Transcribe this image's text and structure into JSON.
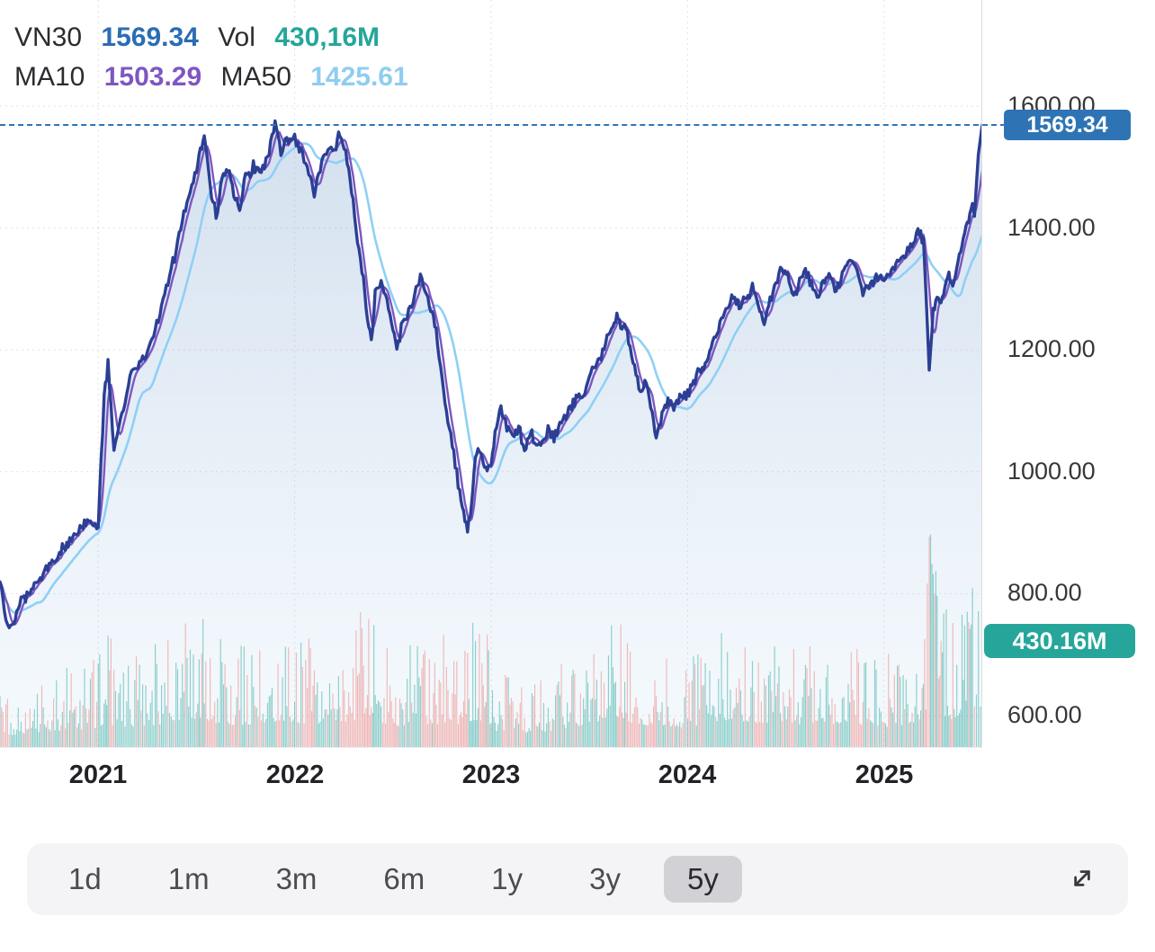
{
  "legend": {
    "symbol_label": "VN30",
    "price": "1569.34",
    "vol_label": "Vol",
    "vol_value": "430,16M",
    "ma10_label": "MA10",
    "ma10_value": "1503.29",
    "ma50_label": "MA50",
    "ma50_value": "1425.61"
  },
  "badges": {
    "price": "1569.34",
    "volume": "430.16M"
  },
  "axis": {
    "price_labels": [
      "1600.00",
      "1400.00",
      "1200.00",
      "1000.00",
      "800.00",
      "600.00"
    ],
    "year_labels": [
      "2021",
      "2022",
      "2023",
      "2024",
      "2025"
    ]
  },
  "toolbar": {
    "ranges": [
      "1d",
      "1m",
      "3m",
      "6m",
      "1y",
      "3y",
      "5y"
    ],
    "selected": "5y"
  },
  "icons": {
    "expand": "diagonal-expand-arrows"
  },
  "chart_data": {
    "type": "line",
    "symbol": "VN30",
    "current_price": 1569.34,
    "current_volume_m": 430.16,
    "ma10_current": 1503.29,
    "ma50_current": 1425.61,
    "series_names": [
      "VN30",
      "MA10",
      "MA50"
    ],
    "legend_position": "top-left",
    "grid": "dotted",
    "xlim": [
      2020.5,
      2025.5
    ],
    "ylim": [
      547,
      1774
    ],
    "x_ticks": [
      2021,
      2022,
      2023,
      2024,
      2025
    ],
    "y_ticks": [
      1600,
      1400,
      1200,
      1000,
      800,
      600
    ],
    "jitter": 9,
    "volume_scale": 0.2,
    "colors": {
      "price": "#2b3f94",
      "ma10": "#7e57c2",
      "ma50": "#8fd0f5",
      "area_top": "rgba(110,150,200,0.30)",
      "area_bottom": "rgba(190,220,240,0.16)",
      "volume_up": "rgba(38,166,154,0.50)",
      "volume_down": "rgba(235,95,90,0.42)",
      "current_line": "#2e75b6",
      "grid": "rgba(60,60,70,0.16)"
    },
    "anchors": {
      "t": [
        2020.5,
        2020.53,
        2020.555,
        2020.6,
        2020.66,
        2020.72,
        2020.78,
        2020.84,
        2020.9,
        2020.96,
        2021.0,
        2021.03,
        2021.05,
        2021.08,
        2021.12,
        2021.17,
        2021.21,
        2021.25,
        2021.29,
        2021.33,
        2021.38,
        2021.42,
        2021.46,
        2021.5,
        2021.52,
        2021.54,
        2021.57,
        2021.6,
        2021.63,
        2021.66,
        2021.69,
        2021.72,
        2021.75,
        2021.79,
        2021.83,
        2021.87,
        2021.9,
        2021.93,
        2021.96,
        2022.0,
        2022.04,
        2022.08,
        2022.1,
        2022.13,
        2022.17,
        2022.21,
        2022.23,
        2022.26,
        2022.29,
        2022.32,
        2022.35,
        2022.37,
        2022.39,
        2022.41,
        2022.44,
        2022.47,
        2022.5,
        2022.52,
        2022.55,
        2022.58,
        2022.61,
        2022.64,
        2022.67,
        2022.7,
        2022.72,
        2022.75,
        2022.78,
        2022.81,
        2022.84,
        2022.86,
        2022.88,
        2022.9,
        2022.92,
        2022.94,
        2022.96,
        2022.98,
        2023.0,
        2023.02,
        2023.05,
        2023.08,
        2023.11,
        2023.14,
        2023.17,
        2023.2,
        2023.23,
        2023.26,
        2023.29,
        2023.32,
        2023.35,
        2023.38,
        2023.41,
        2023.44,
        2023.47,
        2023.5,
        2023.53,
        2023.56,
        2023.59,
        2023.62,
        2023.64,
        2023.66,
        2023.68,
        2023.7,
        2023.73,
        2023.76,
        2023.79,
        2023.82,
        2023.84,
        2023.87,
        2023.9,
        2023.93,
        2023.96,
        2024.0,
        2024.03,
        2024.06,
        2024.09,
        2024.12,
        2024.15,
        2024.18,
        2024.21,
        2024.24,
        2024.27,
        2024.3,
        2024.33,
        2024.36,
        2024.39,
        2024.42,
        2024.45,
        2024.48,
        2024.51,
        2024.54,
        2024.57,
        2024.6,
        2024.63,
        2024.66,
        2024.69,
        2024.72,
        2024.75,
        2024.78,
        2024.81,
        2024.84,
        2024.87,
        2024.9,
        2024.93,
        2024.96,
        2025.0,
        2025.03,
        2025.06,
        2025.09,
        2025.12,
        2025.15,
        2025.18,
        2025.2,
        2025.22,
        2025.23,
        2025.25,
        2025.27,
        2025.29,
        2025.31,
        2025.33,
        2025.35,
        2025.37,
        2025.39,
        2025.41,
        2025.43,
        2025.45,
        2025.46,
        2025.47,
        2025.48,
        2025.49,
        2025.5
      ],
      "price": [
        820,
        762,
        742,
        782,
        812,
        832,
        856,
        882,
        906,
        916,
        912,
        1120,
        1180,
        1032,
        1092,
        1162,
        1180,
        1192,
        1232,
        1282,
        1342,
        1402,
        1452,
        1492,
        1532,
        1552,
        1472,
        1418,
        1482,
        1502,
        1455,
        1432,
        1482,
        1502,
        1486,
        1528,
        1576,
        1522,
        1542,
        1546,
        1522,
        1482,
        1452,
        1502,
        1526,
        1532,
        1556,
        1522,
        1462,
        1382,
        1312,
        1252,
        1212,
        1292,
        1312,
        1282,
        1232,
        1202,
        1242,
        1262,
        1292,
        1312,
        1292,
        1262,
        1232,
        1152,
        1082,
        1036,
        962,
        932,
        902,
        952,
        1022,
        1042,
        1012,
        1002,
        1012,
        1062,
        1106,
        1076,
        1056,
        1072,
        1042,
        1062,
        1046,
        1052,
        1066,
        1052,
        1076,
        1092,
        1106,
        1122,
        1126,
        1152,
        1172,
        1192,
        1222,
        1236,
        1256,
        1232,
        1246,
        1216,
        1172,
        1132,
        1146,
        1092,
        1056,
        1096,
        1116,
        1102,
        1122,
        1132,
        1146,
        1162,
        1176,
        1202,
        1232,
        1256,
        1272,
        1286,
        1272,
        1286,
        1302,
        1272,
        1246,
        1282,
        1312,
        1336,
        1322,
        1292,
        1312,
        1332,
        1306,
        1286,
        1306,
        1322,
        1296,
        1316,
        1342,
        1352,
        1322,
        1292,
        1306,
        1322,
        1316,
        1326,
        1342,
        1352,
        1362,
        1376,
        1396,
        1382,
        1252,
        1172,
        1262,
        1292,
        1272,
        1302,
        1322,
        1312,
        1336,
        1362,
        1392,
        1412,
        1442,
        1426,
        1472,
        1522,
        1546,
        1569.34
      ],
      "volume_m": [
        260,
        240,
        235,
        260,
        290,
        300,
        310,
        320,
        330,
        345,
        355,
        430,
        460,
        410,
        390,
        400,
        395,
        405,
        420,
        450,
        480,
        505,
        520,
        540,
        525,
        505,
        480,
        455,
        445,
        435,
        425,
        415,
        430,
        440,
        432,
        452,
        475,
        455,
        460,
        462,
        450,
        440,
        445,
        450,
        455,
        450,
        455,
        460,
        480,
        520,
        560,
        545,
        525,
        485,
        465,
        445,
        425,
        405,
        412,
        422,
        442,
        452,
        432,
        422,
        432,
        452,
        472,
        462,
        442,
        432,
        452,
        502,
        522,
        512,
        482,
        452,
        432,
        310,
        330,
        312,
        292,
        282,
        272,
        292,
        282,
        292,
        302,
        312,
        332,
        362,
        382,
        402,
        422,
        452,
        472,
        482,
        502,
        522,
        542,
        522,
        502,
        482,
        462,
        442,
        422,
        412,
        432,
        422,
        402,
        382,
        372,
        382,
        402,
        422,
        442,
        462,
        482,
        502,
        522,
        542,
        502,
        482,
        472,
        452,
        442,
        462,
        482,
        502,
        472,
        452,
        442,
        452,
        432,
        422,
        432,
        442,
        422,
        432,
        452,
        462,
        432,
        412,
        402,
        392,
        382,
        392,
        402,
        412,
        422,
        432,
        452,
        502,
        702,
        885,
        755,
        655,
        605,
        565,
        545,
        525,
        552,
        582,
        602,
        622,
        642,
        602,
        622,
        652,
        602,
        430.16
      ]
    }
  }
}
